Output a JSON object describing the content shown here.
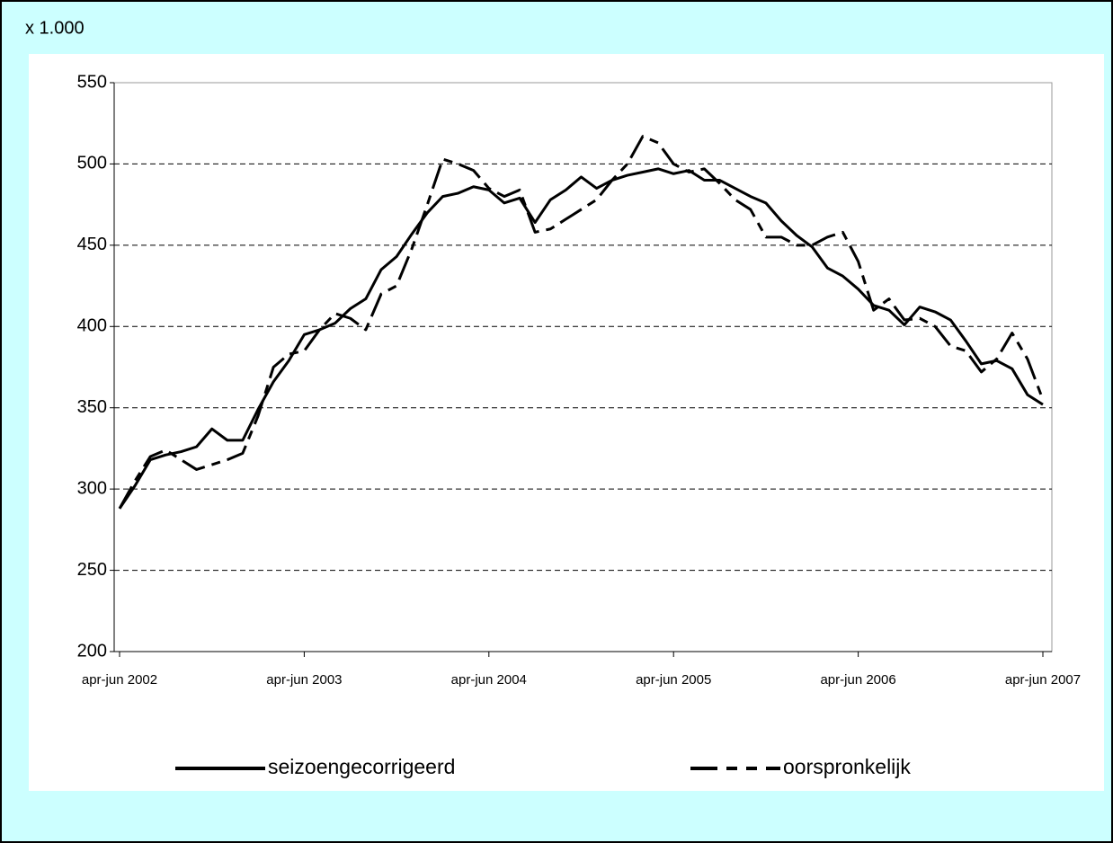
{
  "chart_data": {
    "type": "line",
    "y_unit_label": "x 1.000",
    "categories": [
      "apr-jun 2002",
      null,
      null,
      null,
      null,
      null,
      null,
      null,
      null,
      null,
      null,
      null,
      "apr-jun 2003",
      null,
      null,
      null,
      null,
      null,
      null,
      null,
      null,
      null,
      null,
      null,
      "apr-jun 2004",
      null,
      null,
      null,
      null,
      null,
      null,
      null,
      null,
      null,
      null,
      null,
      "apr-jun 2005",
      null,
      null,
      null,
      null,
      null,
      null,
      null,
      null,
      null,
      null,
      null,
      "apr-jun 2006",
      null,
      null,
      null,
      null,
      null,
      null,
      null,
      null,
      null,
      null,
      null,
      "apr-jun 2007"
    ],
    "series": [
      {
        "name": "seizoengecorrigeerd",
        "color": "#000000",
        "style": "solid",
        "values": [
          288,
          302,
          318,
          321,
          323,
          326,
          337,
          330,
          330,
          349,
          366,
          379,
          395,
          398,
          402,
          411,
          417,
          435,
          443,
          457,
          470,
          480,
          482,
          486,
          484,
          476,
          479,
          464,
          478,
          484,
          492,
          485,
          490,
          493,
          495,
          497,
          494,
          496,
          490,
          490,
          485,
          480,
          476,
          465,
          456,
          449,
          436,
          431,
          423,
          413,
          410,
          401,
          412,
          409,
          404,
          391,
          377,
          379,
          374,
          358,
          352
        ]
      },
      {
        "name": "oorspronkelijk",
        "color": "#000000",
        "style": "dashed",
        "values": [
          288,
          305,
          320,
          324,
          318,
          312,
          315,
          318,
          322,
          345,
          375,
          383,
          385,
          398,
          408,
          405,
          398,
          420,
          425,
          448,
          475,
          503,
          500,
          496,
          485,
          480,
          484,
          458,
          460,
          466,
          472,
          478,
          490,
          500,
          517,
          513,
          500,
          495,
          497,
          488,
          478,
          472,
          455,
          455,
          450,
          450,
          455,
          458,
          440,
          410,
          417,
          404,
          405,
          400,
          388,
          385,
          372,
          380,
          396,
          380,
          355
        ]
      }
    ],
    "ylim": [
      200,
      550
    ],
    "yticks": [
      200,
      250,
      300,
      350,
      400,
      450,
      500,
      550
    ],
    "grid": true,
    "legend": "bottom"
  }
}
